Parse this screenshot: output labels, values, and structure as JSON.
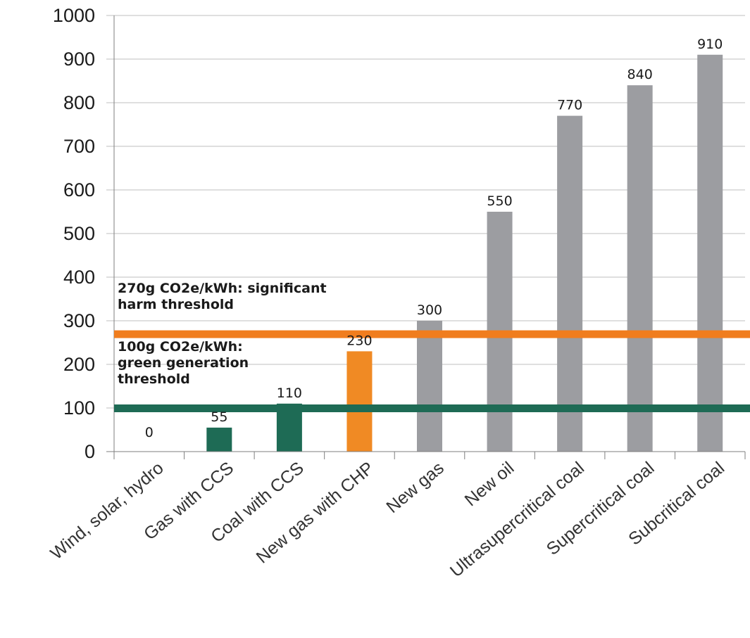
{
  "chart_data": {
    "type": "bar",
    "categories": [
      "Wind, solar, hydro",
      "Gas with CCS",
      "Coal with CCS",
      "New gas with CHP",
      "New gas",
      "New oil",
      "Ultrasupercritical coal",
      "Supercritical coal",
      "Subcritical coal"
    ],
    "values": [
      0,
      55,
      110,
      230,
      300,
      550,
      770,
      840,
      910
    ],
    "value_labels": [
      "0",
      "55",
      "110",
      "230",
      "300",
      "550",
      "770",
      "840",
      "910"
    ],
    "bar_colors": [
      "#1e6b55",
      "#1e6b55",
      "#1e6b55",
      "#f08a24",
      "#9c9da1",
      "#9c9da1",
      "#9c9da1",
      "#9c9da1",
      "#9c9da1"
    ],
    "ylim": [
      0,
      1000
    ],
    "yticks": [
      "0",
      "100",
      "200",
      "300",
      "400",
      "500",
      "600",
      "700",
      "800",
      "900",
      "1000"
    ],
    "grid": true,
    "title": "",
    "xlabel": "",
    "ylabel": "",
    "thresholds": [
      {
        "value": 270,
        "color": "#f07d1e",
        "label_lines": [
          "270g CO2e/kWh: significant",
          "harm threshold"
        ]
      },
      {
        "value": 100,
        "color": "#1e6b55",
        "label_lines": [
          "100g CO2e/kWh:",
          "green generation",
          "threshold"
        ]
      }
    ]
  }
}
